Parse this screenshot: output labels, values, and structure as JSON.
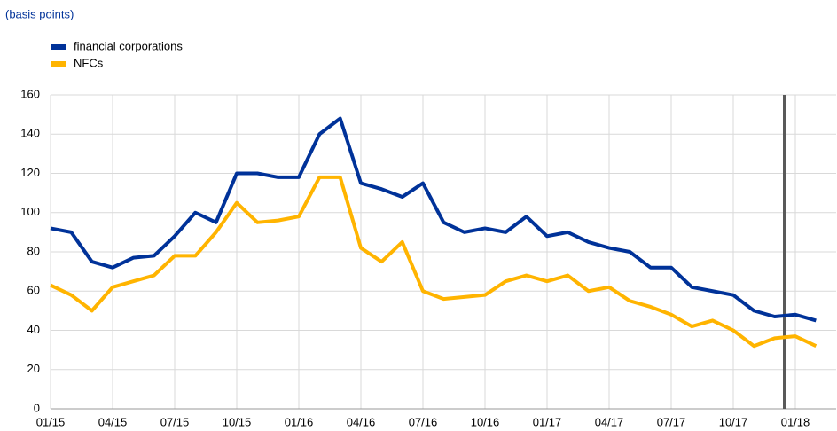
{
  "chart_data": {
    "type": "line",
    "subtitle": "(basis points)",
    "x": [
      "01/15",
      "02/15",
      "03/15",
      "04/15",
      "05/15",
      "06/15",
      "07/15",
      "08/15",
      "09/15",
      "10/15",
      "11/15",
      "12/15",
      "01/16",
      "02/16",
      "03/16",
      "04/16",
      "05/16",
      "06/16",
      "07/16",
      "08/16",
      "09/16",
      "10/16",
      "11/16",
      "12/16",
      "01/17",
      "02/17",
      "03/17",
      "04/17",
      "05/17",
      "06/17",
      "07/17",
      "08/17",
      "09/17",
      "10/17",
      "11/17",
      "12/17",
      "01/18",
      "02/18"
    ],
    "xticks": [
      "01/15",
      "04/15",
      "07/15",
      "10/15",
      "01/16",
      "04/16",
      "07/16",
      "10/16",
      "01/17",
      "04/17",
      "07/17",
      "10/17",
      "01/18"
    ],
    "series": [
      {
        "name": "financial corporations",
        "color": "#003299",
        "values": [
          92,
          90,
          75,
          72,
          77,
          78,
          88,
          100,
          95,
          120,
          120,
          118,
          118,
          140,
          148,
          115,
          112,
          108,
          115,
          95,
          90,
          92,
          90,
          98,
          88,
          90,
          85,
          82,
          80,
          72,
          72,
          62,
          60,
          58,
          50,
          47,
          48,
          45
        ]
      },
      {
        "name": "NFCs",
        "color": "#ffb400",
        "values": [
          63,
          58,
          50,
          62,
          65,
          68,
          78,
          78,
          90,
          105,
          95,
          96,
          98,
          118,
          118,
          82,
          75,
          85,
          60,
          56,
          57,
          58,
          65,
          68,
          65,
          68,
          60,
          62,
          55,
          52,
          48,
          42,
          45,
          40,
          32,
          36,
          37,
          32
        ]
      }
    ],
    "ylim": [
      0,
      160
    ],
    "yticks": [
      0,
      20,
      40,
      60,
      80,
      100,
      120,
      140,
      160
    ],
    "grid": true,
    "legend": "top-left"
  }
}
